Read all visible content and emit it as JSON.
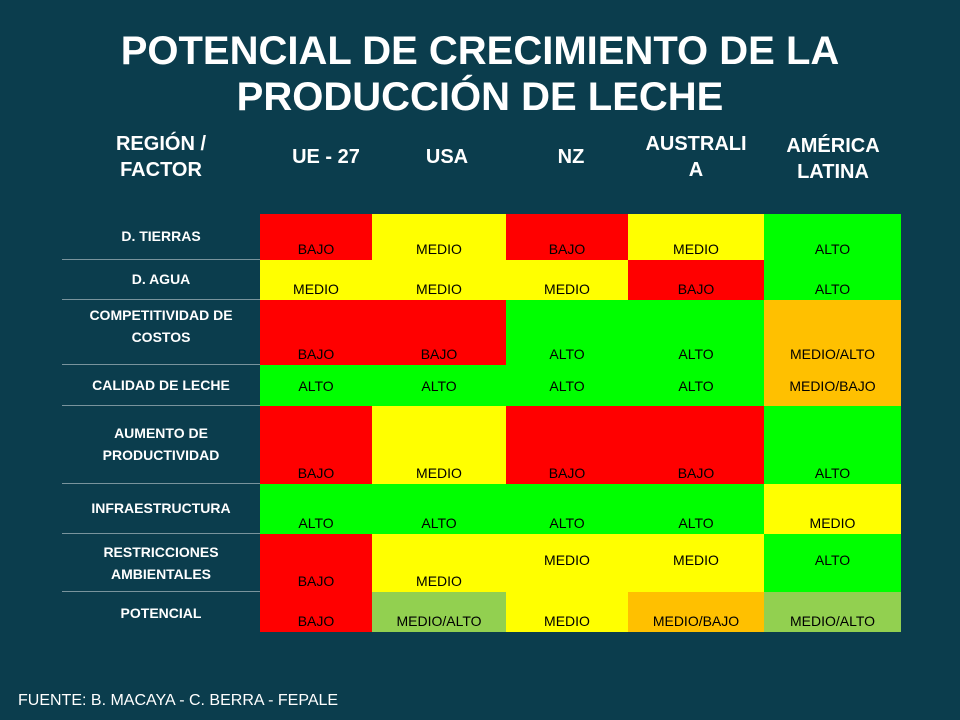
{
  "title": {
    "line1": "POTENCIAL DE CRECIMIENTO DE LA",
    "line2": "PRODUCCIÓN DE  LECHE"
  },
  "table": {
    "corner_header": [
      "REGIÓN /",
      "FACTOR"
    ],
    "columns": [
      {
        "key": "ue27",
        "lines": [
          "UE - 27"
        ]
      },
      {
        "key": "usa",
        "lines": [
          "USA"
        ]
      },
      {
        "key": "nz",
        "lines": [
          "NZ"
        ]
      },
      {
        "key": "australia",
        "lines": [
          "AUSTRALI",
          "A"
        ]
      },
      {
        "key": "america_latina",
        "lines": [
          "AMÉRICA",
          "LATINA"
        ]
      }
    ],
    "rows": [
      {
        "label": [
          "D. TIERRAS"
        ],
        "cells": [
          {
            "text": "BAJO",
            "color": "#ff0000"
          },
          {
            "text": "MEDIO",
            "color": "#ffff00"
          },
          {
            "text": "BAJO",
            "color": "#ff0000"
          },
          {
            "text": "MEDIO",
            "color": "#ffff00"
          },
          {
            "text": "ALTO",
            "color": "#00ff00"
          }
        ]
      },
      {
        "label": [
          "D. AGUA"
        ],
        "cells": [
          {
            "text": "MEDIO",
            "color": "#ffff00"
          },
          {
            "text": "MEDIO",
            "color": "#ffff00"
          },
          {
            "text": "MEDIO",
            "color": "#ffff00"
          },
          {
            "text": "BAJO",
            "color": "#ff0000"
          },
          {
            "text": "ALTO",
            "color": "#00ff00"
          }
        ]
      },
      {
        "label": [
          "COMPETITIVIDAD DE",
          "COSTOS"
        ],
        "cells": [
          {
            "text": "BAJO",
            "color": "#ff0000"
          },
          {
            "text": "BAJO",
            "color": "#ff0000"
          },
          {
            "text": "ALTO",
            "color": "#00ff00"
          },
          {
            "text": "ALTO",
            "color": "#00ff00"
          },
          {
            "text": "MEDIO/ALTO",
            "color": "#ffc000"
          }
        ]
      },
      {
        "label": [
          "CALIDAD DE LECHE"
        ],
        "cells": [
          {
            "text": "ALTO",
            "color": "#00ff00"
          },
          {
            "text": "ALTO",
            "color": "#00ff00"
          },
          {
            "text": "ALTO",
            "color": "#00ff00"
          },
          {
            "text": "ALTO",
            "color": "#00ff00"
          },
          {
            "text": "MEDIO/BAJO",
            "color": "#ffc000"
          }
        ]
      },
      {
        "label": [
          "AUMENTO DE",
          "PRODUCTIVIDAD"
        ],
        "cells": [
          {
            "text": "BAJO",
            "color": "#ff0000"
          },
          {
            "text": "MEDIO",
            "color": "#ffff00"
          },
          {
            "text": "BAJO",
            "color": "#ff0000"
          },
          {
            "text": "BAJO",
            "color": "#ff0000"
          },
          {
            "text": "ALTO",
            "color": "#00ff00"
          }
        ]
      },
      {
        "label": [
          "INFRAESTRUCTURA"
        ],
        "cells": [
          {
            "text": "ALTO",
            "color": "#00ff00"
          },
          {
            "text": "ALTO",
            "color": "#00ff00"
          },
          {
            "text": "ALTO",
            "color": "#00ff00"
          },
          {
            "text": "ALTO",
            "color": "#00ff00"
          },
          {
            "text": "MEDIO",
            "color": "#ffff00"
          }
        ]
      },
      {
        "label": [
          "RESTRICCIONES",
          "AMBIENTALES"
        ],
        "cells": [
          {
            "text": "BAJO",
            "color": "#ff0000"
          },
          {
            "text": "MEDIO",
            "color": "#ffff00"
          },
          {
            "text": "MEDIO",
            "color": "#ffff00"
          },
          {
            "text": "MEDIO",
            "color": "#ffff00"
          },
          {
            "text": "ALTO",
            "color": "#00ff00"
          }
        ]
      },
      {
        "label": [
          "POTENCIAL"
        ],
        "cells": [
          {
            "text": "BAJO",
            "color": "#ff0000"
          },
          {
            "text": "MEDIO/ALTO",
            "color": "#92d050"
          },
          {
            "text": "MEDIO",
            "color": "#ffff00"
          },
          {
            "text": "MEDIO/BAJO",
            "color": "#ffc000"
          },
          {
            "text": "MEDIO/ALTO",
            "color": "#92d050"
          }
        ]
      }
    ]
  },
  "footer": "FUENTE: B. MACAYA -  C. BERRA - FEPALE"
}
